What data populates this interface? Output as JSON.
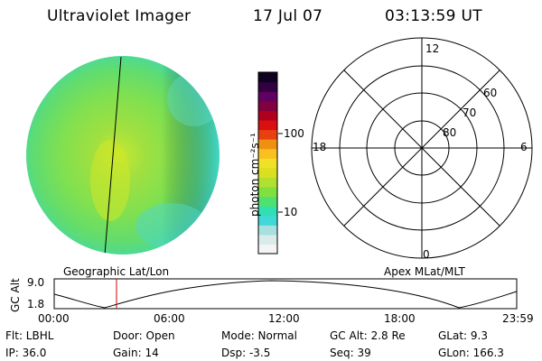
{
  "header": {
    "title": "Ultraviolet Imager",
    "date": "17 Jul 07",
    "time": "03:13:59 UT"
  },
  "colorbar": {
    "unit_label": "photon cm⁻²s⁻¹",
    "tick_labels": [
      "100",
      "10"
    ],
    "colors": [
      "#f4f4f4",
      "#d8ecec",
      "#a8e0e0",
      "#40d8d8",
      "#30e0b0",
      "#50e070",
      "#80e040",
      "#b0e030",
      "#d8e020",
      "#f0e028",
      "#f8c020",
      "#f09010",
      "#e84010",
      "#d81010",
      "#b00020",
      "#800040",
      "#600060",
      "#300040",
      "#100020"
    ]
  },
  "polar": {
    "mlt_labels": [
      "12",
      "18",
      "6",
      "0"
    ],
    "lat_labels": [
      "60",
      "70",
      "80"
    ]
  },
  "track": {
    "left_label": "Geographic Lat/Lon",
    "right_label": "Apex MLat/MLT",
    "y_axis_label": "GC Alt",
    "y_ticks": [
      "9.0",
      "1.8"
    ],
    "x_ticks": [
      "00:00",
      "06:00",
      "12:00",
      "18:00",
      "23:59"
    ]
  },
  "info": {
    "flt": "Flt: LBHL",
    "ip": "IP: 36.0",
    "door": "Door: Open",
    "gain": "Gain: 14",
    "mode": "Mode: Normal",
    "dsp": "Dsp:   -3.5",
    "gc_alt": "GC Alt: 2.8 Re",
    "seq": "Seq: 39",
    "glat": "GLat:   9.3",
    "glon": "GLon: 166.3"
  }
}
